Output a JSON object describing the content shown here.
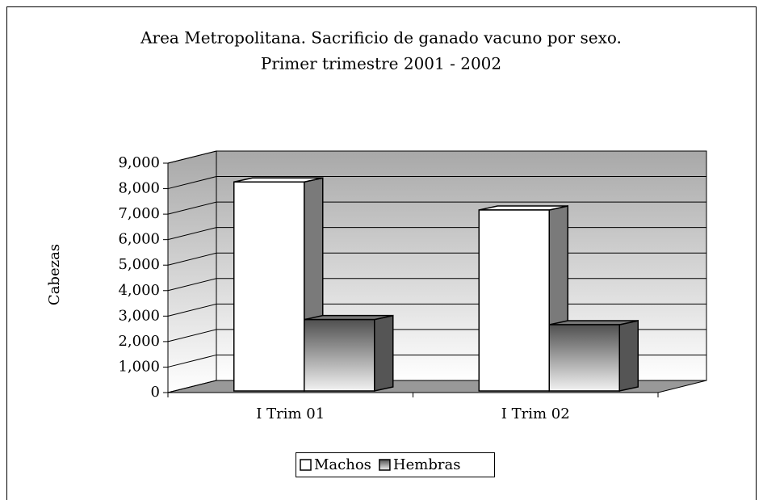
{
  "chart_data": {
    "type": "bar3d",
    "title": "Area Metropolitana. Sacrificio de ganado vacuno por sexo.",
    "subtitle": "Primer trimestre 2001 - 2002",
    "y_label": "Cabezas",
    "categories": [
      "I Trim 01",
      "I Trim 02"
    ],
    "series": [
      {
        "name": "Machos",
        "color": "#ffffff",
        "values": [
          8200,
          7100
        ]
      },
      {
        "name": "Hembras",
        "color": "#808080",
        "values": [
          2800,
          2600
        ]
      }
    ],
    "ylim": [
      0,
      9000
    ],
    "yticks": [
      0,
      {
        "value": 1000,
        "label": "1,000"
      },
      {
        "value": 2000,
        "label": "2,000"
      },
      {
        "value": 3000,
        "label": "3,000"
      },
      {
        "value": 4000,
        "label": "4,000"
      },
      {
        "value": 5000,
        "label": "5,000"
      },
      {
        "value": 6000,
        "label": "6,000"
      },
      {
        "value": 7000,
        "label": "7,000"
      },
      {
        "value": 8000,
        "label": "8,000"
      },
      {
        "value": 9000,
        "label": "9,000"
      }
    ],
    "grid": true,
    "legend": "bottom"
  }
}
